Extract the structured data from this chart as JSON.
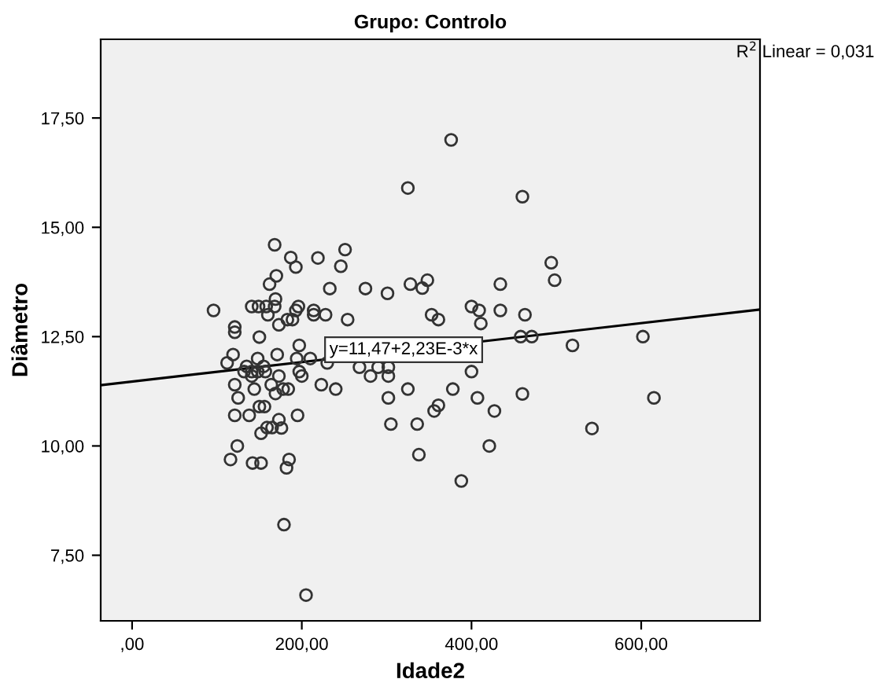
{
  "chart_data": {
    "type": "scatter",
    "title": "Grupo: Controlo",
    "xlabel": "Idade2",
    "ylabel": "Diâmetro",
    "xlim": [
      -37,
      740
    ],
    "ylim": [
      6.0,
      19.3
    ],
    "xticks": [
      {
        "value": 0,
        "label": ",00"
      },
      {
        "value": 200,
        "label": "200,00"
      },
      {
        "value": 400,
        "label": "400,00"
      },
      {
        "value": 600,
        "label": "600,00"
      }
    ],
    "yticks": [
      {
        "value": 7.5,
        "label": "7,50"
      },
      {
        "value": 10,
        "label": "10,00"
      },
      {
        "value": 12.5,
        "label": "12,50"
      },
      {
        "value": 15,
        "label": "15,00"
      },
      {
        "value": 17.5,
        "label": "17,50"
      }
    ],
    "grid": false,
    "legend": false,
    "annotations": [
      {
        "text": "y=11,47+2,23E-3*x",
        "x": 320,
        "y": 12.2
      },
      "R$^{2}$ Linear = 0,031"
    ],
    "series": [
      {
        "marker": "circle",
        "color": "#333333",
        "x": [
          325,
          168,
          187,
          193,
          219,
          251,
          246,
          170,
          162,
          233,
          275,
          301,
          328,
          342,
          348,
          96,
          141,
          149,
          158,
          168,
          169,
          160,
          173,
          183,
          189,
          196,
          193,
          214,
          214,
          228,
          254,
          353,
          361,
          121,
          121,
          150,
          197,
          119,
          171,
          148,
          194,
          210,
          112,
          230,
          132,
          141,
          148,
          157,
          135,
          155,
          141,
          173,
          197,
          200,
          268,
          281,
          290,
          302,
          302,
          121,
          144,
          164,
          169,
          178,
          184,
          223,
          240,
          325,
          378,
          125,
          302,
          121,
          138,
          150,
          156,
          195,
          152,
          159,
          165,
          173,
          176,
          305,
          336,
          361,
          356,
          124,
          116,
          142,
          152,
          185,
          182,
          338,
          460,
          494,
          498,
          434,
          400,
          409,
          411,
          434,
          463,
          458,
          471,
          519,
          602,
          400,
          407,
          460,
          427,
          615,
          542,
          421,
          388,
          376,
          179,
          205
        ],
        "values": [
          15.9,
          14.6,
          14.31,
          14.09,
          14.3,
          14.49,
          14.11,
          13.89,
          13.7,
          13.6,
          13.6,
          13.49,
          13.7,
          13.61,
          13.79,
          13.1,
          13.19,
          13.19,
          13.19,
          13.19,
          13.36,
          13.0,
          12.77,
          12.89,
          12.89,
          13.19,
          13.1,
          13.1,
          13.0,
          13.0,
          12.89,
          13.0,
          12.89,
          12.72,
          12.6,
          12.49,
          12.3,
          12.09,
          12.09,
          12.0,
          12.0,
          12.0,
          11.9,
          11.9,
          11.7,
          11.7,
          11.7,
          11.7,
          11.82,
          11.82,
          11.6,
          11.6,
          11.7,
          11.6,
          11.8,
          11.6,
          11.8,
          11.8,
          11.6,
          11.4,
          11.3,
          11.4,
          11.2,
          11.3,
          11.3,
          11.4,
          11.3,
          11.3,
          11.3,
          11.1,
          11.1,
          10.7,
          10.7,
          10.9,
          10.9,
          10.7,
          10.29,
          10.42,
          10.42,
          10.6,
          10.41,
          10.5,
          10.5,
          10.93,
          10.8,
          10.0,
          9.69,
          9.61,
          9.61,
          9.69,
          9.5,
          9.8,
          15.7,
          14.19,
          13.79,
          13.7,
          13.19,
          13.1,
          12.8,
          13.1,
          13.0,
          12.5,
          12.5,
          12.3,
          12.5,
          11.7,
          11.1,
          11.19,
          10.8,
          11.1,
          10.4,
          10.0,
          9.2,
          17.0,
          8.2,
          6.59
        ]
      },
      {
        "type": "line",
        "marker": "none",
        "color": "#000000",
        "x": [
          -37,
          740
        ],
        "values": [
          11.39,
          13.12
        ]
      }
    ]
  }
}
